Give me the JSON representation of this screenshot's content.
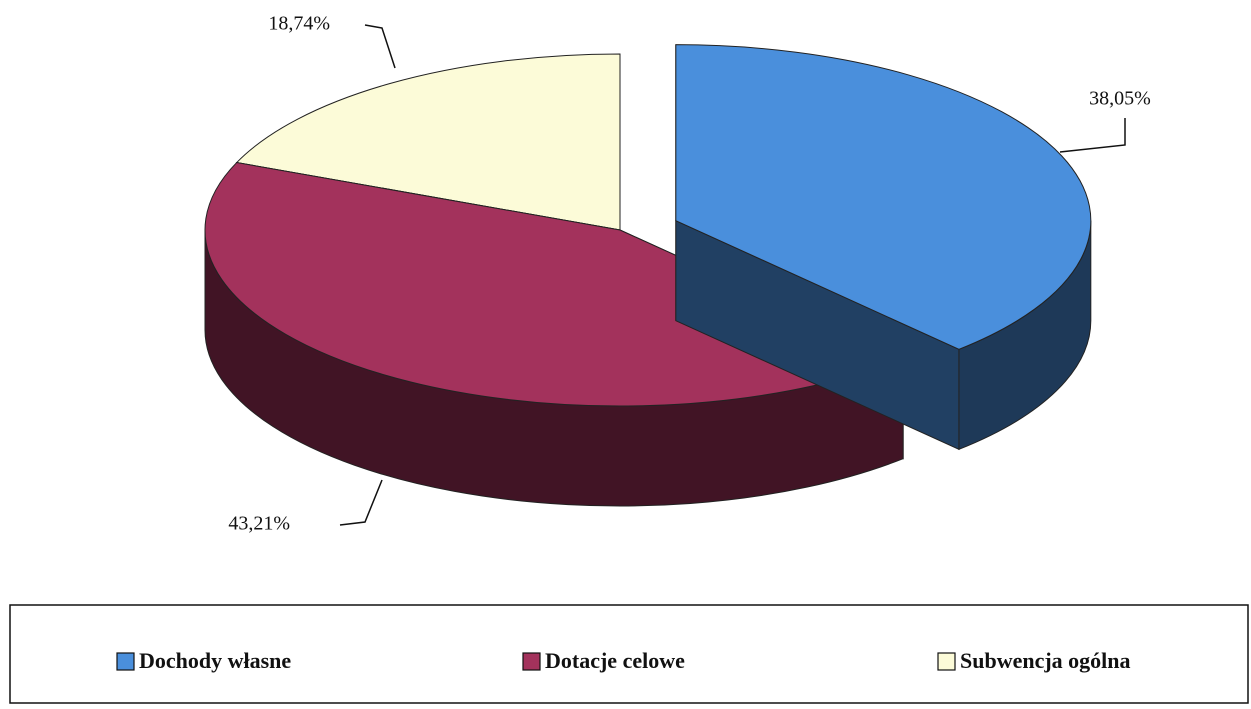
{
  "chart_data": {
    "type": "pie",
    "categories": [
      "Dochody własne",
      "Dotacje celowe",
      "Subwencja ogólna"
    ],
    "values": [
      38.05,
      43.21,
      18.74
    ],
    "value_labels": [
      "38,05%",
      "43,21%",
      "18,74%"
    ],
    "colors": [
      "#4a8fdc",
      "#a3325c",
      "#fcfbd8"
    ],
    "legend": "bottom"
  }
}
